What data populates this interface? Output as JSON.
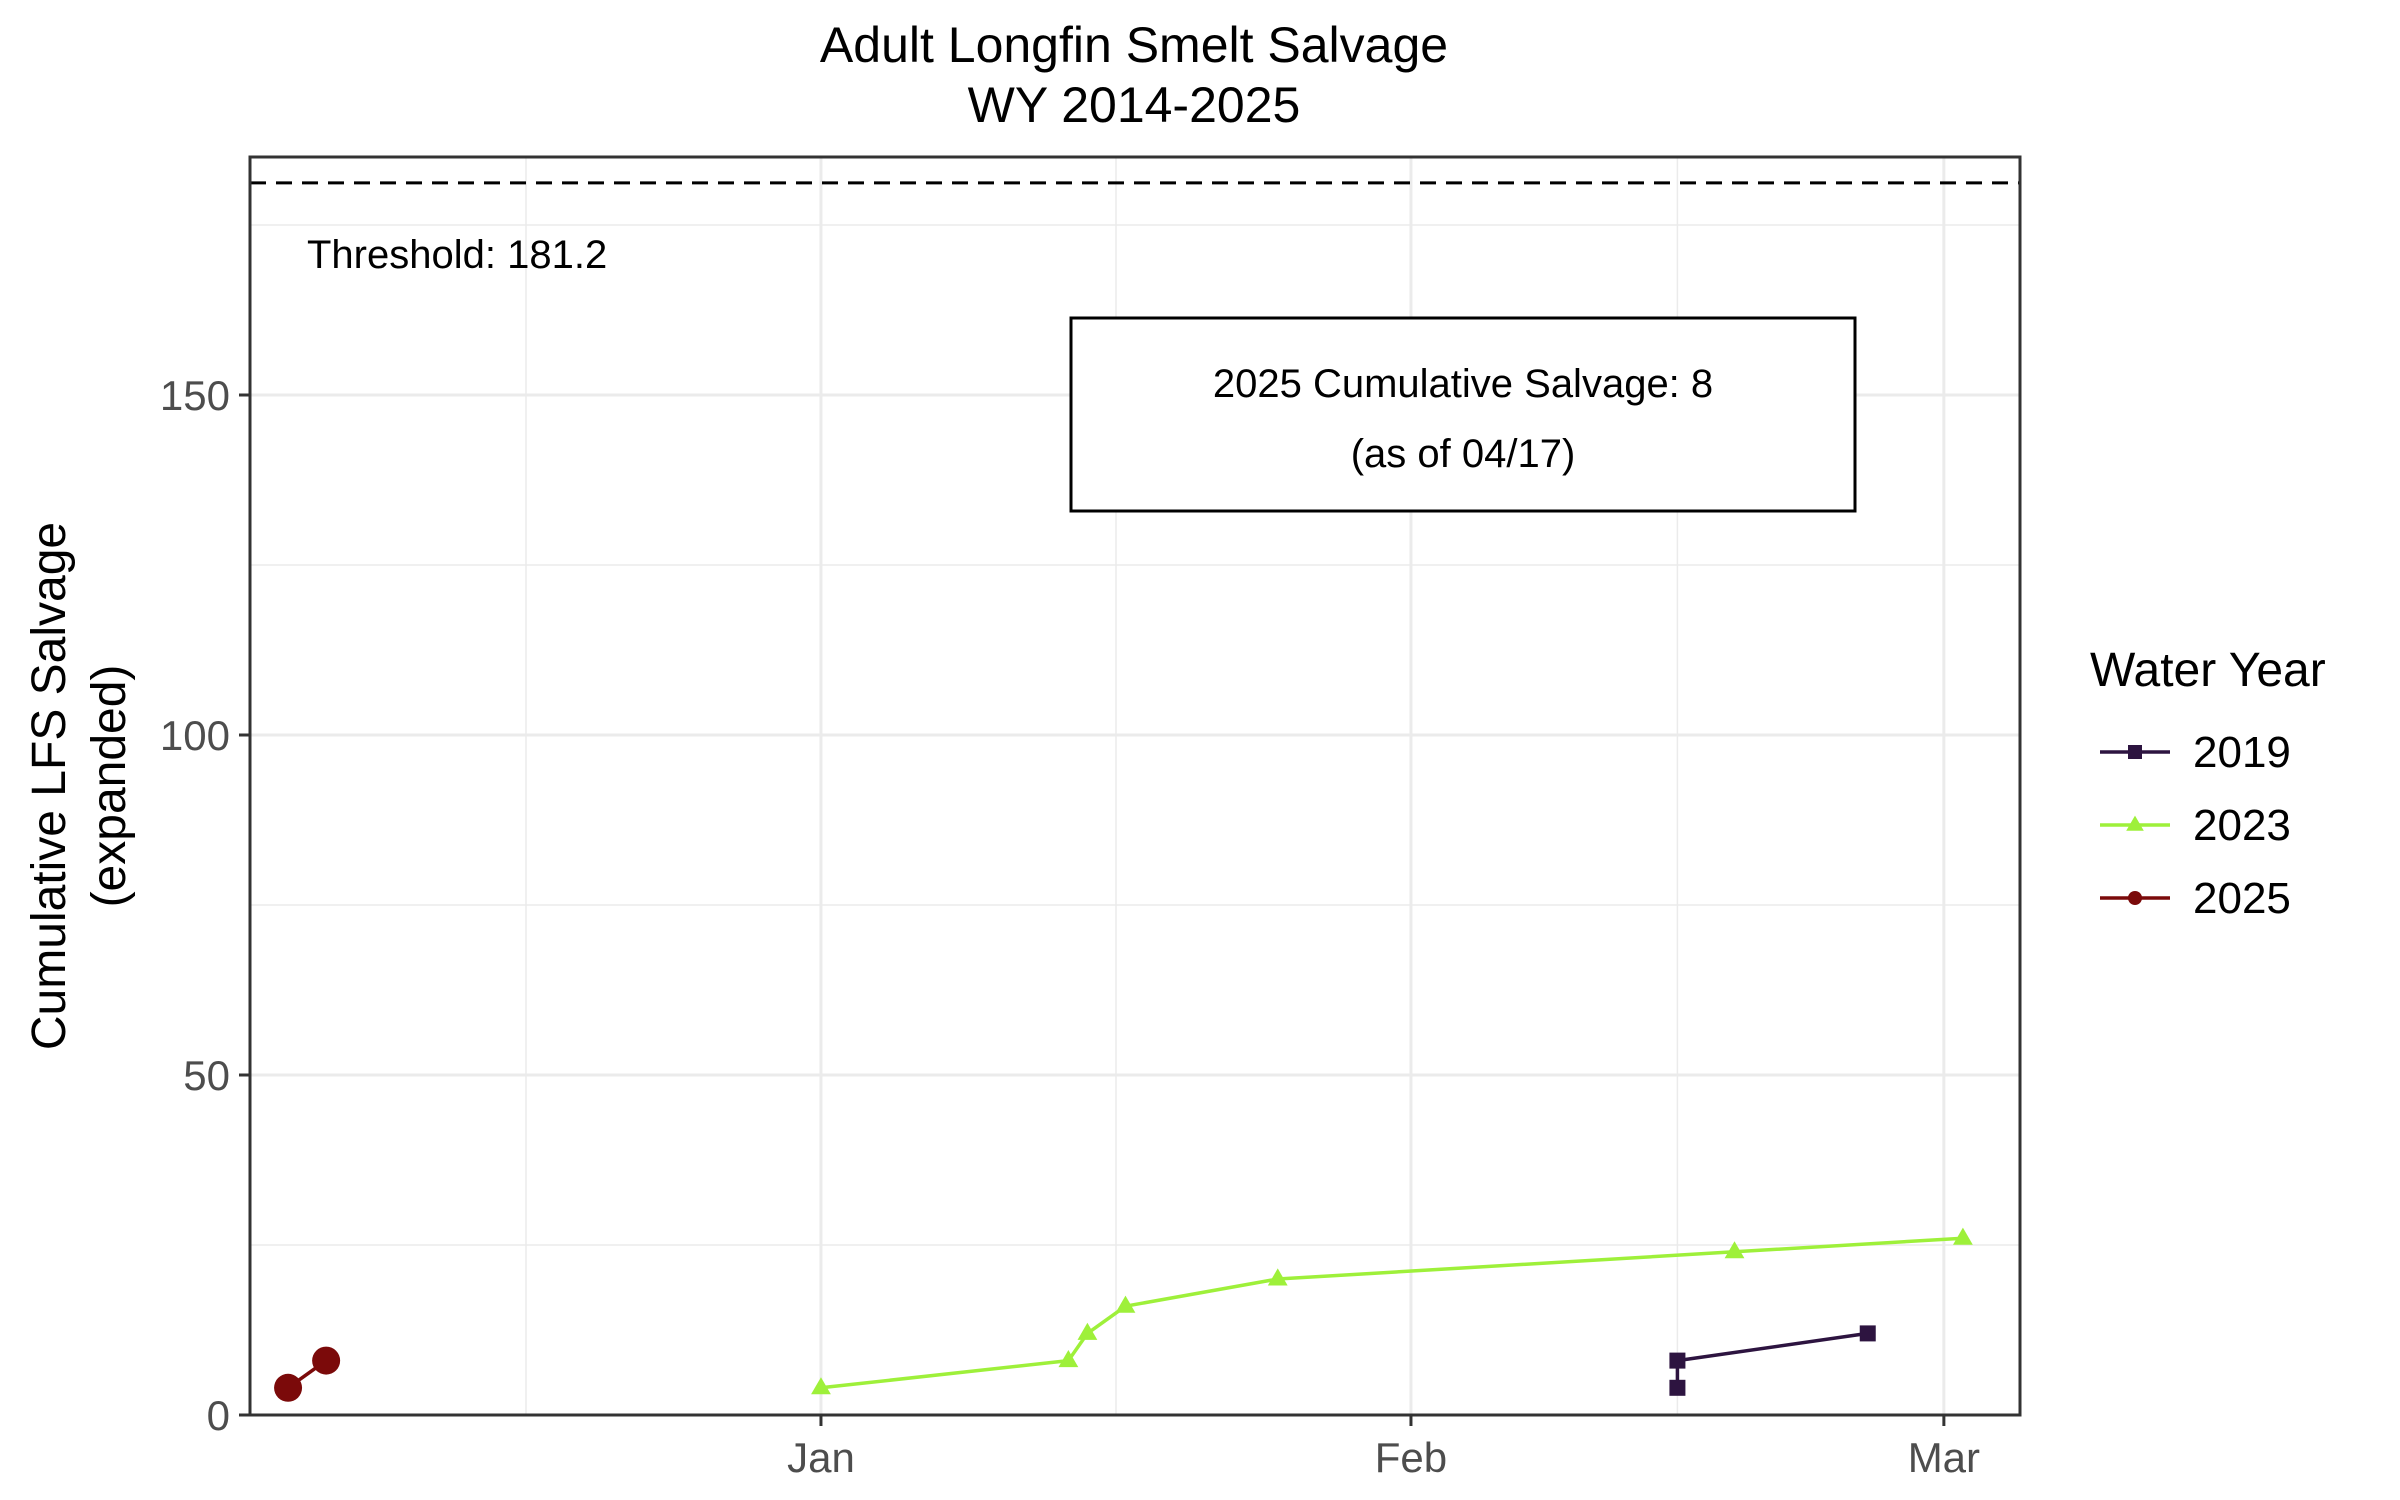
{
  "chart_data": {
    "type": "line",
    "title": "Adult Longfin Smelt Salvage",
    "subtitle": "WY 2014-2025",
    "xlabel": "",
    "ylabel_line1": "Cumulative LFS Salvage",
    "ylabel_line2": "(expanded)",
    "x_axis": {
      "type": "date",
      "range": [
        "12-02",
        "03-05"
      ],
      "ticks": [
        {
          "date": "01-01",
          "label": "Jan"
        },
        {
          "date": "02-01",
          "label": "Feb"
        },
        {
          "date": "03-01",
          "label": "Mar"
        }
      ]
    },
    "y_axis": {
      "range": [
        0,
        185
      ],
      "ticks": [
        0,
        50,
        100,
        150
      ],
      "tick_labels": [
        "0",
        "50",
        "100",
        "150"
      ]
    },
    "grid": true,
    "threshold": {
      "value": 181.2,
      "label": "Threshold: 181.2",
      "style": "dashed"
    },
    "annotation_box": {
      "line1": "2025 Cumulative Salvage: 8",
      "line2": "(as of 04/17)"
    },
    "legend": {
      "title": "Water Year",
      "position": "right"
    },
    "series": [
      {
        "name": "2019",
        "color": "#2d1440",
        "marker": "square",
        "points": [
          [
            "02-15",
            4
          ],
          [
            "02-15",
            8
          ],
          [
            "02-25",
            12
          ]
        ]
      },
      {
        "name": "2023",
        "color": "#9ef03a",
        "marker": "triangle",
        "points": [
          [
            "01-01",
            4
          ],
          [
            "01-14",
            8
          ],
          [
            "01-15",
            12
          ],
          [
            "01-17",
            16
          ],
          [
            "01-25",
            20
          ],
          [
            "02-18",
            24
          ],
          [
            "03-02",
            26
          ]
        ]
      },
      {
        "name": "2025",
        "color": "#7b0a0a",
        "marker": "circle",
        "points": [
          [
            "12-04",
            4
          ],
          [
            "12-06",
            8
          ]
        ]
      }
    ]
  }
}
